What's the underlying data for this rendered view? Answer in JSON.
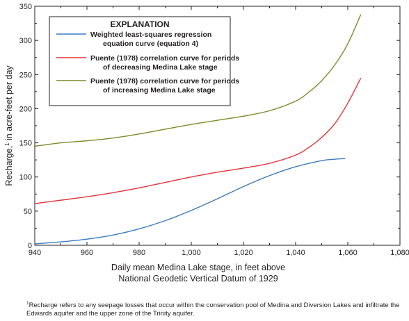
{
  "chart_data": {
    "type": "line",
    "xlabel_lines": [
      "Daily mean Medina Lake stage, in feet above",
      "National Geodetic Vertical Datum of 1929"
    ],
    "ylabel": "Recharge,",
    "ylabel_sup": "1",
    "ylabel_rest": " in acre-feet per day",
    "xlim": [
      940,
      1080
    ],
    "ylim": [
      0,
      350
    ],
    "xticks": [
      940,
      960,
      980,
      1000,
      1020,
      1040,
      1060,
      1080
    ],
    "xtick_labels": [
      "940",
      "960",
      "980",
      "1,000",
      "1,020",
      "1,040",
      "1,060",
      "1,080"
    ],
    "yticks": [
      0,
      50,
      100,
      150,
      200,
      250,
      300,
      350
    ],
    "ytick_labels": [
      "0",
      "50",
      "100",
      "150",
      "200",
      "250",
      "300",
      "350"
    ],
    "grid": false,
    "legend": {
      "title": "EXPLANATION",
      "placement": "top-left",
      "entries": [
        {
          "series": 0,
          "lines": [
            "Weighted least-squares regression",
            "equation curve (equation 4)"
          ]
        },
        {
          "series": 1,
          "lines": [
            "Puente (1978) correlation curve for periods",
            "of decreasing Medina Lake stage"
          ]
        },
        {
          "series": 2,
          "lines": [
            "Puente (1978) correlation curve for periods",
            "of increasing Medina Lake stage"
          ]
        }
      ]
    },
    "series": [
      {
        "color": "#3b7bbf",
        "x": [
          940,
          950,
          960,
          970,
          980,
          990,
          1000,
          1010,
          1020,
          1030,
          1040,
          1050,
          1055,
          1059
        ],
        "y": [
          2,
          5,
          9,
          15,
          24,
          36,
          51,
          68,
          86,
          102,
          115,
          124,
          126,
          127
        ]
      },
      {
        "color": "#e2333a",
        "x": [
          940,
          950,
          960,
          970,
          980,
          990,
          1000,
          1010,
          1020,
          1030,
          1040,
          1045,
          1050,
          1055,
          1060,
          1065
        ],
        "y": [
          61,
          66,
          71,
          77,
          84,
          92,
          100,
          107,
          113,
          120,
          132,
          143,
          158,
          178,
          208,
          245
        ]
      },
      {
        "color": "#7e8a2a",
        "x": [
          940,
          950,
          960,
          970,
          980,
          990,
          1000,
          1010,
          1020,
          1030,
          1040,
          1045,
          1050,
          1055,
          1060,
          1065
        ],
        "y": [
          145,
          150,
          153,
          157,
          163,
          170,
          177,
          183,
          189,
          197,
          211,
          224,
          241,
          264,
          295,
          338
        ]
      }
    ]
  },
  "footnote": {
    "sup": "1",
    "text": "Recharge refers to any seepage losses that occur within the conservation pool of Medina and Diversion Lakes and infiltrate the Edwards aquifer and the upper zone of the Trinity aquifer."
  }
}
